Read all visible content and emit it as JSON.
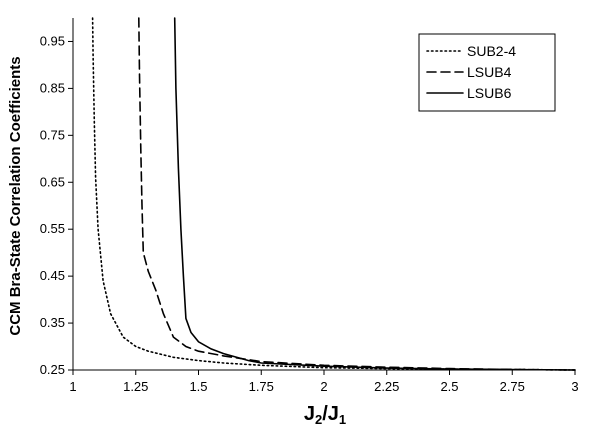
{
  "chart_data": {
    "type": "line",
    "title": "",
    "xlabel": "J2/J1",
    "ylabel": "CCM Bra-State Correlation Coefficients",
    "xlim": [
      1,
      3
    ],
    "ylim": [
      0.25,
      1.0
    ],
    "xticks": [
      "1",
      "1.25",
      "1.5",
      "1.75",
      "2",
      "2.25",
      "2.5",
      "2.75",
      "3"
    ],
    "yticks": [
      "0.25",
      "0.35",
      "0.45",
      "0.55",
      "0.65",
      "0.75",
      "0.85",
      "0.95"
    ],
    "grid": false,
    "legend_position": "top-right",
    "series": [
      {
        "name": "SUB2-4",
        "style": "dotted",
        "x": [
          1.078,
          1.08,
          1.085,
          1.09,
          1.1,
          1.12,
          1.15,
          1.2,
          1.25,
          1.3,
          1.4,
          1.5,
          1.6,
          1.75,
          2.0,
          2.25,
          2.5,
          2.75,
          3.0
        ],
        "y": [
          1.0,
          0.92,
          0.78,
          0.66,
          0.55,
          0.44,
          0.37,
          0.32,
          0.3,
          0.29,
          0.277,
          0.27,
          0.265,
          0.26,
          0.255,
          0.253,
          0.252,
          0.251,
          0.25
        ]
      },
      {
        "name": "LSUB4",
        "style": "dashed",
        "x": [
          1.262,
          1.265,
          1.27,
          1.275,
          1.28,
          1.3,
          1.33,
          1.36,
          1.4,
          1.45,
          1.5,
          1.6,
          1.75,
          2.0,
          2.25,
          2.5,
          2.75,
          3.0
        ],
        "y": [
          1.0,
          0.88,
          0.72,
          0.6,
          0.5,
          0.46,
          0.42,
          0.37,
          0.32,
          0.3,
          0.29,
          0.28,
          0.268,
          0.26,
          0.256,
          0.253,
          0.251,
          0.25
        ]
      },
      {
        "name": "LSUB6",
        "style": "solid",
        "x": [
          1.405,
          1.41,
          1.42,
          1.43,
          1.44,
          1.45,
          1.47,
          1.5,
          1.55,
          1.6,
          1.7,
          1.75,
          2.0,
          2.25,
          2.5,
          2.75,
          3.0
        ],
        "y": [
          1.0,
          0.85,
          0.68,
          0.55,
          0.45,
          0.36,
          0.33,
          0.31,
          0.295,
          0.285,
          0.27,
          0.265,
          0.258,
          0.254,
          0.252,
          0.251,
          0.25
        ]
      }
    ]
  }
}
